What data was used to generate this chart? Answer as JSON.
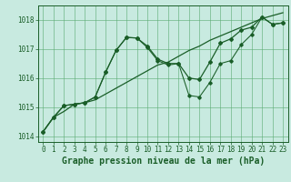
{
  "xlabel": "Graphe pression niveau de la mer (hPa)",
  "xlim": [
    -0.5,
    23.5
  ],
  "ylim": [
    1013.8,
    1018.5
  ],
  "yticks": [
    1014,
    1015,
    1016,
    1017,
    1018
  ],
  "xticks": [
    0,
    1,
    2,
    3,
    4,
    5,
    6,
    7,
    8,
    9,
    10,
    11,
    12,
    13,
    14,
    15,
    16,
    17,
    18,
    19,
    20,
    21,
    22,
    23
  ],
  "bg_color": "#c8eae0",
  "grid_color": "#5aaa72",
  "line_color": "#1a5e28",
  "series1_x": [
    0,
    1,
    2,
    3,
    4,
    5,
    6,
    7,
    8,
    9,
    10,
    11,
    12,
    13,
    14,
    15,
    16,
    17,
    18,
    19,
    20,
    21,
    22,
    23
  ],
  "series1_y": [
    1014.15,
    1014.65,
    1014.85,
    1015.1,
    1015.15,
    1015.25,
    1015.45,
    1015.65,
    1015.85,
    1016.05,
    1016.25,
    1016.45,
    1016.55,
    1016.75,
    1016.95,
    1017.1,
    1017.3,
    1017.45,
    1017.6,
    1017.75,
    1017.9,
    1018.05,
    1018.15,
    1018.25
  ],
  "series2_x": [
    0,
    1,
    2,
    3,
    4,
    5,
    6,
    7,
    8,
    9,
    10,
    11,
    12,
    13,
    14,
    15,
    16,
    17,
    18,
    19,
    20,
    21,
    22,
    23
  ],
  "series2_y": [
    1014.15,
    1014.65,
    1015.05,
    1015.1,
    1015.15,
    1015.35,
    1016.2,
    1016.95,
    1017.4,
    1017.38,
    1017.1,
    1016.65,
    1016.5,
    1016.5,
    1016.0,
    1015.95,
    1016.55,
    1017.2,
    1017.35,
    1017.65,
    1017.75,
    1018.1,
    1017.85,
    1017.9
  ],
  "series3_x": [
    0,
    1,
    2,
    3,
    4,
    5,
    6,
    7,
    8,
    9,
    10,
    11,
    12,
    13,
    14,
    15,
    16,
    17,
    18,
    19,
    20,
    21,
    22,
    23
  ],
  "series3_y": [
    1014.15,
    1014.65,
    1015.05,
    1015.1,
    1015.15,
    1015.35,
    1016.2,
    1016.95,
    1017.4,
    1017.38,
    1017.05,
    1016.6,
    1016.45,
    1016.5,
    1015.4,
    1015.35,
    1015.85,
    1016.5,
    1016.6,
    1017.15,
    1017.5,
    1018.1,
    1017.85,
    1017.9
  ],
  "xlabel_fontsize": 7,
  "tick_fontsize": 5.5,
  "marker": "D",
  "markersize": 2.0,
  "linewidth": 0.9
}
